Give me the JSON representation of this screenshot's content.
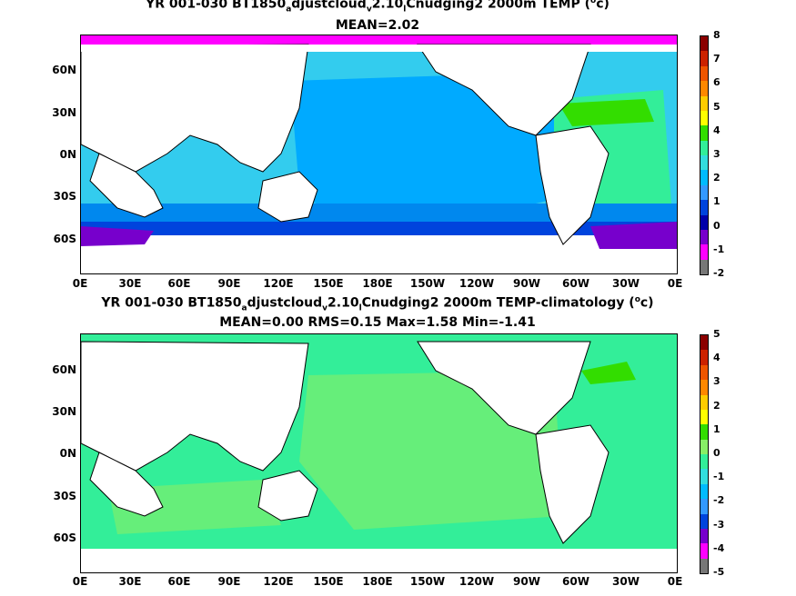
{
  "panel1": {
    "title_parts": [
      "YR 001-030 BT1850",
      "a",
      "djustcloud",
      "v",
      "2.10",
      "l",
      "Cnudging2 2000m TEMP (",
      "o",
      "c)"
    ],
    "subtitle": "MEAN=2.02",
    "colorbar_labels": [
      "8",
      "7",
      "6",
      "5",
      "4",
      "3",
      "2",
      "1",
      "0",
      "-1",
      "-2"
    ],
    "colorbar_colors": [
      "#8b0000",
      "#cc2200",
      "#ee5500",
      "#ff8800",
      "#ffcc00",
      "#ffff00",
      "#33dd00",
      "#33ee99",
      "#33dddd",
      "#00bbff",
      "#3399ff",
      "#0044dd",
      "#0000aa",
      "#7700cc",
      "#ff00ff",
      "#777777"
    ]
  },
  "panel2": {
    "title_parts": [
      "YR 001-030 BT1850",
      "a",
      "djustcloud",
      "v",
      "2.10",
      "l",
      "Cnudging2 2000m TEMP-climatology (",
      "o",
      "c)"
    ],
    "subtitle": "MEAN=0.00   RMS=0.15   Max=1.58   Min=-1.41",
    "colorbar_labels": [
      "5",
      "4",
      "3",
      "2",
      "1",
      "0",
      "-1",
      "-2",
      "-3",
      "-4",
      "-5"
    ],
    "colorbar_colors": [
      "#8b0000",
      "#cc2200",
      "#ee5500",
      "#ff8800",
      "#ffcc00",
      "#ffff00",
      "#33dd00",
      "#88ee66",
      "#33ee99",
      "#33dddd",
      "#00bbff",
      "#3399ff",
      "#0044dd",
      "#7700cc",
      "#ff00ff",
      "#777777"
    ]
  },
  "axes": {
    "lat_labels": [
      "60N",
      "30N",
      "0N",
      "30S",
      "60S"
    ],
    "lon_labels": [
      "0E",
      "30E",
      "60E",
      "90E",
      "120E",
      "150E",
      "180E",
      "150W",
      "120W",
      "90W",
      "60W",
      "30W",
      "0E"
    ]
  }
}
